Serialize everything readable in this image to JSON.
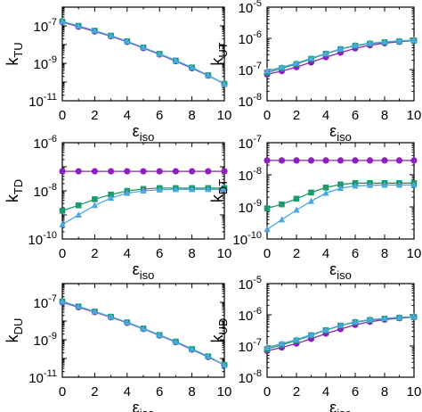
{
  "colors": {
    "purple": "#8e1fc2",
    "green": "#1a9c6a",
    "light_blue": "#4ba7e2"
  },
  "chart_data": [
    {
      "type": "line",
      "ylabel_main": "k",
      "ylabel_sub": "TU",
      "xlabel_main": "ε",
      "xlabel_sub": "iso",
      "yscale": "log",
      "ylim": [
        1e-11,
        1e-06
      ],
      "yticks": [
        {
          "base": "10",
          "exp": "-7",
          "v": 1e-07
        },
        {
          "base": "10",
          "exp": "-9",
          "v": 1e-09
        },
        {
          "base": "10",
          "exp": "-11",
          "v": 1e-11
        }
      ],
      "xlim": [
        0,
        10
      ],
      "xticks": [
        "0",
        "2",
        "4",
        "6",
        "8",
        "10"
      ],
      "x": [
        0,
        1,
        2,
        3,
        4,
        5,
        6,
        7,
        8,
        9,
        10
      ],
      "series": [
        {
          "color": "purple",
          "marker": "circle",
          "values": [
            1.6e-07,
            9e-08,
            5e-08,
            2.8e-08,
            1.4e-08,
            6.5e-09,
            3e-09,
            1.3e-09,
            5.5e-10,
            2.2e-10,
            8e-11
          ]
        },
        {
          "color": "green",
          "marker": "square",
          "values": [
            1.7e-07,
            1e-07,
            5.5e-08,
            3e-08,
            1.5e-08,
            7e-09,
            3.2e-09,
            1.4e-09,
            6e-10,
            2.3e-10,
            8e-11
          ]
        },
        {
          "color": "light_blue",
          "marker": "triangle",
          "values": [
            1.7e-07,
            1e-07,
            5.5e-08,
            3e-08,
            1.5e-08,
            7e-09,
            3.2e-09,
            1.4e-09,
            6e-10,
            2.3e-10,
            8e-11
          ]
        }
      ]
    },
    {
      "type": "line",
      "ylabel_main": "k",
      "ylabel_sub": "UT",
      "xlabel_main": "ε",
      "xlabel_sub": "iso",
      "yscale": "log",
      "ylim": [
        1e-08,
        1e-05
      ],
      "yticks": [
        {
          "base": "10",
          "exp": "-5",
          "v": 1e-05
        },
        {
          "base": "10",
          "exp": "-6",
          "v": 1e-06
        },
        {
          "base": "10",
          "exp": "-7",
          "v": 1e-07
        },
        {
          "base": "10",
          "exp": "-8",
          "v": 1e-08
        }
      ],
      "xlim": [
        0,
        10
      ],
      "xticks": [
        "0",
        "2",
        "4",
        "6",
        "8",
        "10"
      ],
      "x": [
        0,
        1,
        2,
        3,
        4,
        5,
        6,
        7,
        8,
        9,
        10
      ],
      "series": [
        {
          "color": "purple",
          "marker": "circle",
          "values": [
            7e-08,
            9e-08,
            1.2e-07,
            1.7e-07,
            2.5e-07,
            3.5e-07,
            4.8e-07,
            6e-07,
            7e-07,
            7.8e-07,
            8.5e-07
          ]
        },
        {
          "color": "green",
          "marker": "square",
          "values": [
            8e-08,
            1.1e-07,
            1.5e-07,
            2.2e-07,
            3.2e-07,
            4.5e-07,
            5.8e-07,
            6.8e-07,
            7.5e-07,
            8e-07,
            8.5e-07
          ]
        },
        {
          "color": "light_blue",
          "marker": "triangle",
          "values": [
            9e-08,
            1.2e-07,
            1.6e-07,
            2.3e-07,
            3.3e-07,
            4.6e-07,
            6e-07,
            7e-07,
            7.7e-07,
            8.3e-07,
            8.8e-07
          ]
        }
      ]
    },
    {
      "type": "line",
      "ylabel_main": "k",
      "ylabel_sub": "TD",
      "xlabel_main": "ε",
      "xlabel_sub": "iso",
      "yscale": "log",
      "ylim": [
        1e-10,
        1e-06
      ],
      "yticks": [
        {
          "base": "10",
          "exp": "-6",
          "v": 1e-06
        },
        {
          "base": "10",
          "exp": "-8",
          "v": 1e-08
        },
        {
          "base": "10",
          "exp": "-10",
          "v": 1e-10
        }
      ],
      "xlim": [
        0,
        10
      ],
      "xticks": [
        "0",
        "2",
        "4",
        "6",
        "8",
        "10"
      ],
      "x": [
        0,
        1,
        2,
        3,
        4,
        5,
        6,
        7,
        8,
        9,
        10
      ],
      "series": [
        {
          "color": "purple",
          "marker": "circle",
          "values": [
            6.5e-08,
            6.5e-08,
            6.5e-08,
            6.5e-08,
            6.5e-08,
            6.5e-08,
            6.5e-08,
            6.5e-08,
            6.5e-08,
            6.5e-08,
            6.5e-08
          ]
        },
        {
          "color": "green",
          "marker": "square",
          "values": [
            1.5e-09,
            2.5e-09,
            4.5e-09,
            7e-09,
            1e-08,
            1.2e-08,
            1.3e-08,
            1.3e-08,
            1.3e-08,
            1.3e-08,
            1.3e-08
          ]
        },
        {
          "color": "light_blue",
          "marker": "triangle",
          "values": [
            4e-10,
            1e-09,
            2.5e-09,
            5e-09,
            8e-09,
            1e-08,
            1.1e-08,
            1.15e-08,
            1.15e-08,
            1.15e-08,
            1.15e-08
          ]
        }
      ]
    },
    {
      "type": "line",
      "ylabel_main": "k",
      "ylabel_sub": "DT",
      "xlabel_main": "ε",
      "xlabel_sub": "iso",
      "yscale": "log",
      "ylim": [
        1e-10,
        1e-07
      ],
      "yticks": [
        {
          "base": "10",
          "exp": "-7",
          "v": 1e-07
        },
        {
          "base": "10",
          "exp": "-8",
          "v": 1e-08
        },
        {
          "base": "10",
          "exp": "-9",
          "v": 1e-09
        },
        {
          "base": "10",
          "exp": "-10",
          "v": 1e-10
        }
      ],
      "xlim": [
        0,
        10
      ],
      "xticks": [
        "0",
        "2",
        "4",
        "6",
        "8",
        "10"
      ],
      "x": [
        0,
        1,
        2,
        3,
        4,
        5,
        6,
        7,
        8,
        9,
        10
      ],
      "series": [
        {
          "color": "purple",
          "marker": "circle",
          "values": [
            2.8e-08,
            2.8e-08,
            2.8e-08,
            2.8e-08,
            2.8e-08,
            2.8e-08,
            2.8e-08,
            2.8e-08,
            2.8e-08,
            2.8e-08,
            2.8e-08
          ]
        },
        {
          "color": "green",
          "marker": "square",
          "values": [
            9e-10,
            1.2e-09,
            1.8e-09,
            2.8e-09,
            4e-09,
            5e-09,
            5.5e-09,
            5.5e-09,
            5.5e-09,
            5.5e-09,
            5.5e-09
          ]
        },
        {
          "color": "light_blue",
          "marker": "triangle",
          "values": [
            2e-10,
            4e-10,
            8e-10,
            1.5e-09,
            2.7e-09,
            3.8e-09,
            4.5e-09,
            4.7e-09,
            4.8e-09,
            4.8e-09,
            4.8e-09
          ]
        }
      ]
    },
    {
      "type": "line",
      "ylabel_main": "k",
      "ylabel_sub": "DU",
      "xlabel_main": "ε",
      "xlabel_sub": "iso",
      "yscale": "log",
      "ylim": [
        1e-11,
        1e-06
      ],
      "yticks": [
        {
          "base": "10",
          "exp": "-7",
          "v": 1e-07
        },
        {
          "base": "10",
          "exp": "-9",
          "v": 1e-09
        },
        {
          "base": "10",
          "exp": "-11",
          "v": 1e-11
        }
      ],
      "xlim": [
        0,
        10
      ],
      "xticks": [
        "0",
        "2",
        "4",
        "6",
        "8",
        "10"
      ],
      "x": [
        0,
        1,
        2,
        3,
        4,
        5,
        6,
        7,
        8,
        9,
        10
      ],
      "series": [
        {
          "color": "purple",
          "marker": "circle",
          "values": [
            1e-07,
            5.5e-08,
            3e-08,
            1.6e-08,
            8e-09,
            3.8e-09,
            1.7e-09,
            7.5e-10,
            3e-10,
            1.2e-10,
            4.5e-11
          ]
        },
        {
          "color": "green",
          "marker": "square",
          "values": [
            1.1e-07,
            6e-08,
            3.2e-08,
            1.7e-08,
            8.5e-09,
            4e-09,
            1.8e-09,
            8e-10,
            3.2e-10,
            1.3e-10,
            4.5e-11
          ]
        },
        {
          "color": "light_blue",
          "marker": "triangle",
          "values": [
            1.1e-07,
            6e-08,
            3.2e-08,
            1.7e-08,
            8.5e-09,
            4e-09,
            1.8e-09,
            8e-10,
            3.2e-10,
            1.3e-10,
            4.5e-11
          ]
        }
      ]
    },
    {
      "type": "line",
      "ylabel_main": "k",
      "ylabel_sub": "UD",
      "xlabel_main": "ε",
      "xlabel_sub": "iso",
      "yscale": "log",
      "ylim": [
        1e-08,
        1e-05
      ],
      "yticks": [
        {
          "base": "10",
          "exp": "-5",
          "v": 1e-05
        },
        {
          "base": "10",
          "exp": "-6",
          "v": 1e-06
        },
        {
          "base": "10",
          "exp": "-7",
          "v": 1e-07
        },
        {
          "base": "10",
          "exp": "-8",
          "v": 1e-08
        }
      ],
      "xlim": [
        0,
        10
      ],
      "xticks": [
        "0",
        "2",
        "4",
        "6",
        "8",
        "10"
      ],
      "x": [
        0,
        1,
        2,
        3,
        4,
        5,
        6,
        7,
        8,
        9,
        10
      ],
      "series": [
        {
          "color": "purple",
          "marker": "circle",
          "values": [
            7e-08,
            9e-08,
            1.2e-07,
            1.7e-07,
            2.5e-07,
            3.5e-07,
            4.8e-07,
            6e-07,
            7e-07,
            7.8e-07,
            8.5e-07
          ]
        },
        {
          "color": "green",
          "marker": "square",
          "values": [
            8e-08,
            1.1e-07,
            1.5e-07,
            2.2e-07,
            3.2e-07,
            4.5e-07,
            5.8e-07,
            6.8e-07,
            7.5e-07,
            8e-07,
            8.5e-07
          ]
        },
        {
          "color": "light_blue",
          "marker": "triangle",
          "values": [
            9e-08,
            1.2e-07,
            1.6e-07,
            2.3e-07,
            3.3e-07,
            4.6e-07,
            6e-07,
            7e-07,
            7.7e-07,
            8.3e-07,
            8.8e-07
          ]
        }
      ]
    }
  ]
}
